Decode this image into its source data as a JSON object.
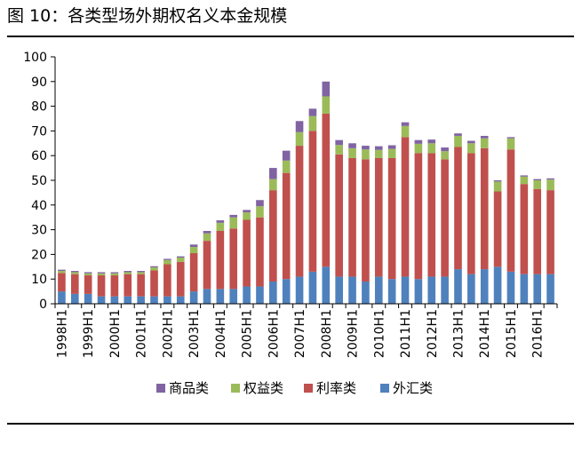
{
  "figure": {
    "title": "图 10：各类型场外期权名义本金规模"
  },
  "colors": {
    "fx": "#4f81bd",
    "rate": "#c0504d",
    "equity": "#9bbb59",
    "commodity": "#8064a2"
  },
  "chart_data": {
    "type": "bar",
    "stacked": true,
    "title": "",
    "xlabel": "",
    "ylabel": "",
    "ylim": [
      0,
      100
    ],
    "yticks": [
      0,
      10,
      20,
      30,
      40,
      50,
      60,
      70,
      80,
      90,
      100
    ],
    "grid": false,
    "legend_position": "bottom",
    "categories": [
      "1998H1",
      "1998H2",
      "1999H1",
      "1999H2",
      "2000H1",
      "2000H2",
      "2001H1",
      "2001H2",
      "2002H1",
      "2002H2",
      "2003H1",
      "2003H2",
      "2004H1",
      "2004H2",
      "2005H1",
      "2005H2",
      "2006H1",
      "2006H2",
      "2007H1",
      "2007H2",
      "2008H1",
      "2008H2",
      "2009H1",
      "2009H2",
      "2010H1",
      "2010H2",
      "2011H1",
      "2011H2",
      "2012H1",
      "2012H2",
      "2013H1",
      "2013H2",
      "2014H1",
      "2014H2",
      "2015H1",
      "2015H2",
      "2016H1",
      "2016H2"
    ],
    "x_tick_labels": [
      "1998H1",
      "1999H1",
      "2000H1",
      "2001H1",
      "2002H1",
      "2003H1",
      "2004H1",
      "2005H1",
      "2006H1",
      "2007H1",
      "2008H1",
      "2009H1",
      "2010H1",
      "2011H1",
      "2012H1",
      "2013H1",
      "2014H1",
      "2015H1",
      "2016H1"
    ],
    "series": [
      {
        "name": "外汇类",
        "color": "#4f81bd",
        "values": [
          5,
          4,
          4,
          3,
          3,
          3,
          3,
          3,
          3,
          3,
          5,
          6,
          6,
          6,
          7,
          7,
          9,
          10,
          11,
          13,
          15,
          11,
          11,
          9,
          11,
          10,
          11,
          10,
          11,
          11,
          14,
          12,
          14,
          15,
          13,
          12,
          12,
          12
        ]
      },
      {
        "name": "利率类",
        "color": "#c0504d",
        "values": [
          7.5,
          8,
          7.5,
          8.5,
          8.5,
          9,
          9,
          10.5,
          13,
          14,
          15.5,
          19.5,
          23.5,
          24.5,
          27,
          28,
          37,
          43,
          53,
          57,
          62,
          49.5,
          48,
          49.5,
          48,
          49,
          56.5,
          51,
          50,
          47.5,
          49.5,
          49,
          49,
          30.5,
          49.5,
          36.5,
          34.5,
          34
        ]
      },
      {
        "name": "权益类",
        "color": "#9bbb59",
        "values": [
          0.8,
          0.8,
          0.8,
          0.8,
          0.8,
          0.8,
          0.8,
          1.2,
          1.7,
          1.7,
          2.5,
          3,
          3.3,
          4.5,
          3,
          4.5,
          4.5,
          5,
          5.5,
          6,
          7,
          3.8,
          4,
          4,
          3.3,
          3.7,
          4.5,
          3.8,
          4,
          3.3,
          4.5,
          4,
          4,
          4,
          4.5,
          3,
          3.5,
          4.3
        ]
      },
      {
        "name": "商品类",
        "color": "#8064a2",
        "values": [
          0.5,
          0.5,
          0.5,
          0.5,
          0.5,
          0.5,
          0.5,
          0.5,
          0.5,
          0.5,
          1,
          1,
          1,
          1,
          1,
          2.5,
          4.5,
          4,
          4.5,
          3,
          6,
          2,
          2,
          1.5,
          1.5,
          1.5,
          1.5,
          1.5,
          1.5,
          1.5,
          1,
          1,
          1,
          0.5,
          0.5,
          0.5,
          0.5,
          0.5
        ]
      }
    ],
    "legend_order": [
      "商品类",
      "权益类",
      "利率类",
      "外汇类"
    ]
  }
}
